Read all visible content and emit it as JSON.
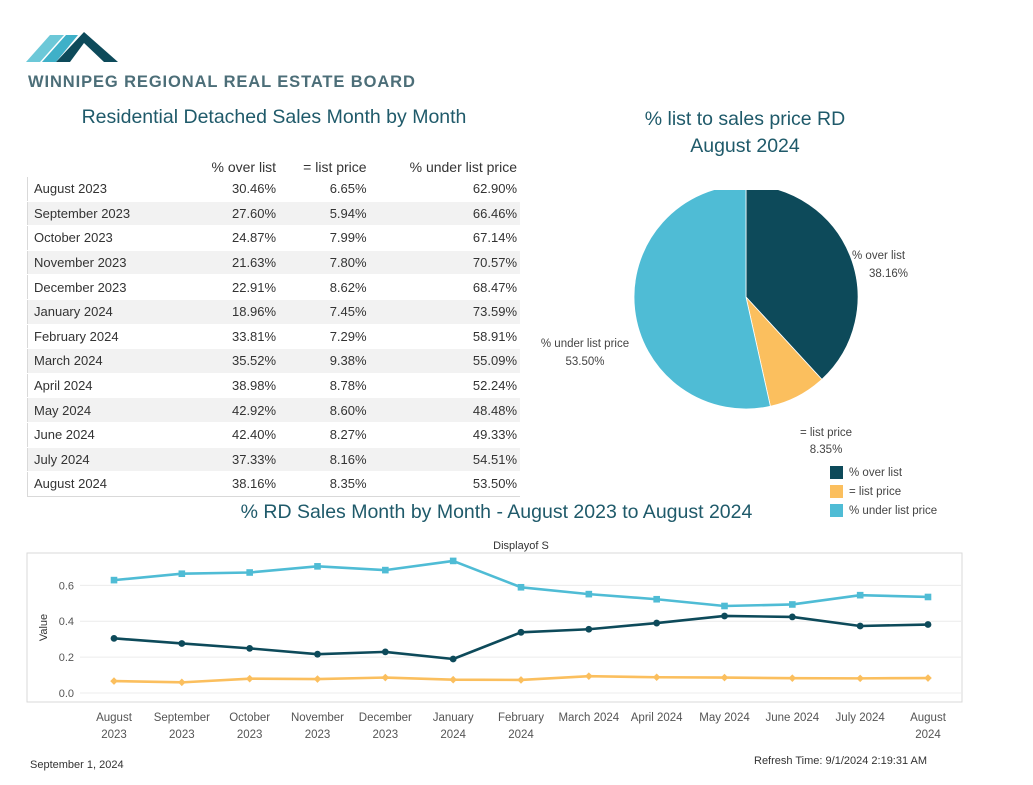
{
  "header": {
    "org_name": "WINNIPEG REGIONAL REAL ESTATE BOARD"
  },
  "table": {
    "title": "Residential Detached Sales Month by Month",
    "columns": [
      "",
      "% over list",
      "= list price",
      "% under list price"
    ],
    "rows": [
      [
        "August 2023",
        "30.46%",
        "6.65%",
        "62.90%"
      ],
      [
        "September 2023",
        "27.60%",
        "5.94%",
        "66.46%"
      ],
      [
        "October 2023",
        "24.87%",
        "7.99%",
        "67.14%"
      ],
      [
        "November 2023",
        "21.63%",
        "7.80%",
        "70.57%"
      ],
      [
        "December 2023",
        "22.91%",
        "8.62%",
        "68.47%"
      ],
      [
        "January 2024",
        "18.96%",
        "7.45%",
        "73.59%"
      ],
      [
        "February 2024",
        "33.81%",
        "7.29%",
        "58.91%"
      ],
      [
        "March 2024",
        "35.52%",
        "9.38%",
        "55.09%"
      ],
      [
        "April 2024",
        "38.98%",
        "8.78%",
        "52.24%"
      ],
      [
        "May 2024",
        "42.92%",
        "8.60%",
        "48.48%"
      ],
      [
        "June 2024",
        "42.40%",
        "8.27%",
        "49.33%"
      ],
      [
        "July 2024",
        "37.33%",
        "8.16%",
        "54.51%"
      ],
      [
        "August 2024",
        "38.16%",
        "8.35%",
        "53.50%"
      ]
    ]
  },
  "colors": {
    "over": "#0d4a5a",
    "equal": "#fbbf5e",
    "under": "#4fbcd5",
    "title": "#1f5a6a"
  },
  "chart_data": [
    {
      "type": "pie",
      "title": "% list to sales price RD",
      "subtitle": "August 2024",
      "slices": [
        {
          "label": "% over list",
          "value": 38.16,
          "display": "38.16%",
          "color": "#0d4a5a"
        },
        {
          "label": "= list price",
          "value": 8.35,
          "display": "8.35%",
          "color": "#fbbf5e"
        },
        {
          "label": "% under list price",
          "value": 53.5,
          "display": "53.50%",
          "color": "#4fbcd5"
        }
      ],
      "legend": [
        "% over list",
        "= list price",
        "% under list price"
      ],
      "legend_position": "bottom-right"
    },
    {
      "type": "line",
      "title": "% RD Sales Month by Month - August 2023 to August 2024",
      "subtitle": "Displayof S",
      "ylabel": "Value",
      "xlabel": "",
      "ylim": [
        -0.05,
        0.78
      ],
      "yticks": [
        0.0,
        0.2,
        0.4,
        0.6
      ],
      "ytick_labels": [
        "0.0",
        "0.2",
        "0.4",
        "0.6"
      ],
      "categories": [
        [
          "August",
          "2023"
        ],
        [
          "September",
          "2023"
        ],
        [
          "October",
          "2023"
        ],
        [
          "November",
          "2023"
        ],
        [
          "December",
          "2023"
        ],
        [
          "January",
          "2024"
        ],
        [
          "February",
          "2024"
        ],
        [
          "March 2024"
        ],
        [
          "April 2024"
        ],
        [
          "May 2024"
        ],
        [
          "June 2024"
        ],
        [
          "July 2024"
        ],
        [
          "August",
          "2024"
        ]
      ],
      "series": [
        {
          "values": [
            0.629,
            0.6646,
            0.6714,
            0.7057,
            0.6847,
            0.7359,
            0.5891,
            0.5509,
            0.5224,
            0.4848,
            0.4933,
            0.5451,
            0.535
          ],
          "color": "#4fbcd5",
          "marker": "square"
        },
        {
          "values": [
            0.3046,
            0.276,
            0.2487,
            0.2163,
            0.2291,
            0.1896,
            0.3381,
            0.3552,
            0.3898,
            0.4292,
            0.424,
            0.3733,
            0.3816
          ],
          "color": "#0d4a5a",
          "marker": "circle"
        },
        {
          "values": [
            0.0665,
            0.0594,
            0.0799,
            0.078,
            0.0862,
            0.0745,
            0.0729,
            0.0938,
            0.0878,
            0.086,
            0.0827,
            0.0816,
            0.0835
          ],
          "color": "#fbbf5e",
          "marker": "diamond"
        }
      ],
      "grid": true
    }
  ],
  "footer": {
    "date": "September 1, 2024",
    "refresh": "Refresh Time: 9/1/2024 2:19:31 AM"
  }
}
